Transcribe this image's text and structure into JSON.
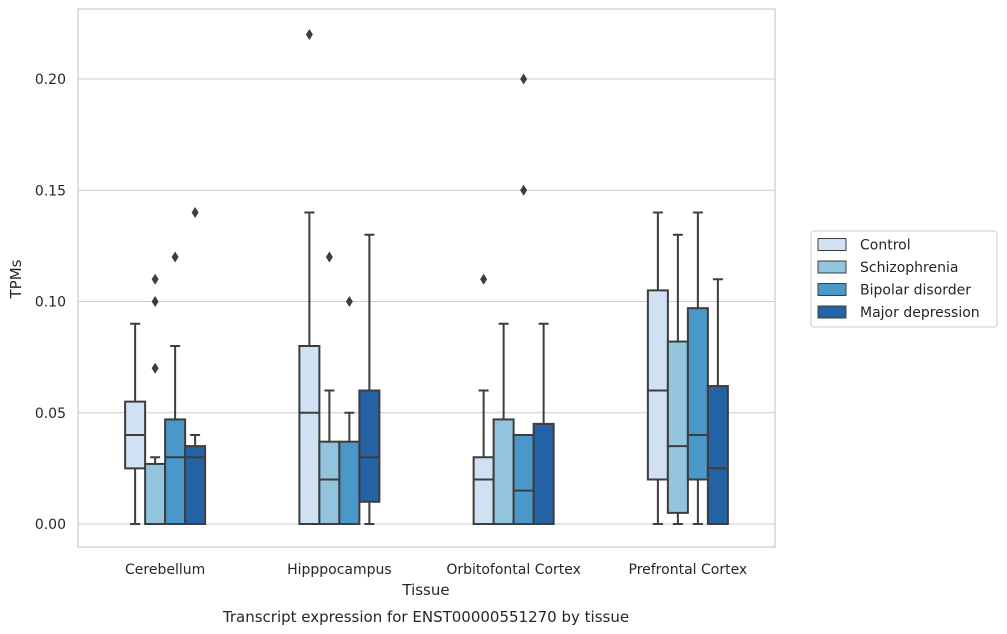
{
  "chart_data": {
    "type": "box",
    "title": "Transcript expression for ENST00000551270 by tissue",
    "xlabel": "Tissue",
    "ylabel": "TPMs",
    "ylim": [
      -0.011,
      0.232
    ],
    "yticks": [
      "0.00",
      "0.05",
      "0.10",
      "0.15",
      "0.20"
    ],
    "ytick_values": [
      0,
      0.05,
      0.1,
      0.15,
      0.2
    ],
    "grid": true,
    "legend_position": "right",
    "categories": [
      "Cerebellum",
      "Hipppocampus",
      "Orbitofontal Cortex",
      "Prefrontal Cortex"
    ],
    "series": [
      {
        "name": "Control",
        "color": "#cfe1f2",
        "boxes": [
          {
            "whisker_low": 0,
            "q1": 0.025,
            "median": 0.04,
            "q3": 0.055,
            "whisker_high": 0.09,
            "outliers": []
          },
          {
            "whisker_low": 0,
            "q1": 0,
            "median": 0.05,
            "q3": 0.08,
            "whisker_high": 0.14,
            "outliers": [
              0.22
            ]
          },
          {
            "whisker_low": 0,
            "q1": 0,
            "median": 0.02,
            "q3": 0.03,
            "whisker_high": 0.06,
            "outliers": [
              0.11
            ]
          },
          {
            "whisker_low": 0,
            "q1": 0.02,
            "median": 0.06,
            "q3": 0.105,
            "whisker_high": 0.14,
            "outliers": []
          }
        ]
      },
      {
        "name": "Schizophrenia",
        "color": "#93c4de",
        "boxes": [
          {
            "whisker_low": 0,
            "q1": 0,
            "median": 0,
            "q3": 0.027,
            "whisker_high": 0.03,
            "outliers": [
              0.07,
              0.1,
              0.11
            ]
          },
          {
            "whisker_low": 0,
            "q1": 0,
            "median": 0.02,
            "q3": 0.037,
            "whisker_high": 0.06,
            "outliers": [
              0.12
            ]
          },
          {
            "whisker_low": 0,
            "q1": 0,
            "median": 0,
            "q3": 0.047,
            "whisker_high": 0.09,
            "outliers": []
          },
          {
            "whisker_low": 0,
            "q1": 0.005,
            "median": 0.035,
            "q3": 0.082,
            "whisker_high": 0.13,
            "outliers": []
          }
        ]
      },
      {
        "name": "Bipolar disorder",
        "color": "#4a98c9",
        "boxes": [
          {
            "whisker_low": 0,
            "q1": 0,
            "median": 0.03,
            "q3": 0.047,
            "whisker_high": 0.08,
            "outliers": [
              0.12
            ]
          },
          {
            "whisker_low": 0,
            "q1": 0,
            "median": 0,
            "q3": 0.037,
            "whisker_high": 0.05,
            "outliers": [
              0.1
            ]
          },
          {
            "whisker_low": 0,
            "q1": 0,
            "median": 0.015,
            "q3": 0.04,
            "whisker_high": 0.04,
            "outliers": [
              0.15,
              0.2
            ]
          },
          {
            "whisker_low": 0,
            "q1": 0.02,
            "median": 0.04,
            "q3": 0.097,
            "whisker_high": 0.14,
            "outliers": []
          }
        ]
      },
      {
        "name": "Major depression",
        "color": "#2462a6",
        "boxes": [
          {
            "whisker_low": 0,
            "q1": 0,
            "median": 0.03,
            "q3": 0.035,
            "whisker_high": 0.04,
            "outliers": [
              0.14
            ]
          },
          {
            "whisker_low": 0,
            "q1": 0.01,
            "median": 0.03,
            "q3": 0.06,
            "whisker_high": 0.13,
            "outliers": []
          },
          {
            "whisker_low": 0,
            "q1": 0,
            "median": 0,
            "q3": 0.045,
            "whisker_high": 0.09,
            "outliers": []
          },
          {
            "whisker_low": 0,
            "q1": 0,
            "median": 0.025,
            "q3": 0.062,
            "whisker_high": 0.11,
            "outliers": []
          }
        ]
      }
    ]
  }
}
